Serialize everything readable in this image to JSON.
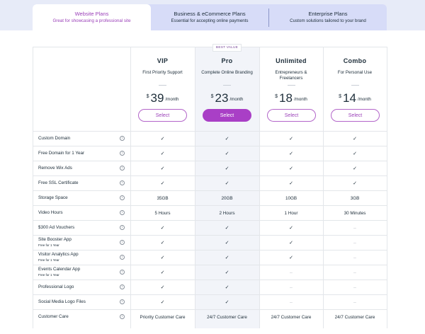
{
  "tabs": [
    {
      "title": "Website Plans",
      "subtitle": "Great for showcasing a professional site",
      "active": true
    },
    {
      "title": "Business & eCommerce Plans",
      "subtitle": "Essential for accepting online payments",
      "active": false
    },
    {
      "title": "Enterprise Plans",
      "subtitle": "Custom solutions tailored to your brand",
      "active": false
    }
  ],
  "plans": [
    {
      "name": "VIP",
      "desc": "First Priority Support",
      "currency": "$",
      "price": "39",
      "per": "/month",
      "button": "Select",
      "badge": ""
    },
    {
      "name": "Pro",
      "desc": "Complete Online Branding",
      "currency": "$",
      "price": "23",
      "per": "/month",
      "button": "Select",
      "badge": "BEST VALUE"
    },
    {
      "name": "Unlimited",
      "desc": "Entrepreneurs & Freelancers",
      "currency": "$",
      "price": "18",
      "per": "/month",
      "button": "Select",
      "badge": ""
    },
    {
      "name": "Combo",
      "desc": "For Personal Use",
      "currency": "$",
      "price": "14",
      "per": "/month",
      "button": "Select",
      "badge": ""
    }
  ],
  "features": [
    {
      "name": "Custom Domain",
      "sub": "",
      "values": [
        "✓",
        "✓",
        "✓",
        "✓"
      ]
    },
    {
      "name": "Free Domain for 1 Year",
      "sub": "",
      "values": [
        "✓",
        "✓",
        "✓",
        "✓"
      ]
    },
    {
      "name": "Remove Wix Ads",
      "sub": "",
      "values": [
        "✓",
        "✓",
        "✓",
        "✓"
      ]
    },
    {
      "name": "Free SSL Certificate",
      "sub": "",
      "values": [
        "✓",
        "✓",
        "✓",
        "✓"
      ]
    },
    {
      "name": "Storage Space",
      "sub": "",
      "values": [
        "35GB",
        "20GB",
        "10GB",
        "3GB"
      ]
    },
    {
      "name": "Video Hours",
      "sub": "",
      "values": [
        "5 Hours",
        "2 Hours",
        "1 Hour",
        "30 Minutes"
      ]
    },
    {
      "name": "$300 Ad Vouchers",
      "sub": "",
      "values": [
        "✓",
        "✓",
        "✓",
        "–"
      ]
    },
    {
      "name": "Site Booster App",
      "sub": "Free for 1 Year",
      "values": [
        "✓",
        "✓",
        "✓",
        "–"
      ]
    },
    {
      "name": "Visitor Analytics App",
      "sub": "Free for 1 Year",
      "values": [
        "✓",
        "✓",
        "✓",
        "–"
      ]
    },
    {
      "name": "Events Calendar App",
      "sub": "Free for 1 Year",
      "values": [
        "✓",
        "✓",
        "–",
        "–"
      ]
    },
    {
      "name": "Professional Logo",
      "sub": "",
      "values": [
        "✓",
        "✓",
        "–",
        "–"
      ]
    },
    {
      "name": "Social Media Logo Files",
      "sub": "",
      "values": [
        "✓",
        "✓",
        "–",
        "–"
      ]
    },
    {
      "name": "Customer Care",
      "sub": "",
      "values": [
        "Priority Customer Care",
        "24/7 Customer Care",
        "24/7 Customer Care",
        "24/7 Customer Care"
      ]
    }
  ],
  "icons": {
    "info": "info-icon",
    "info_glyph": "i",
    "check": "check-icon",
    "dash": "dash-icon"
  },
  "colors": {
    "accent": "#a93fc6",
    "tab_bg": "#d7dcf8",
    "highlight_col": "#f2f4f9"
  }
}
